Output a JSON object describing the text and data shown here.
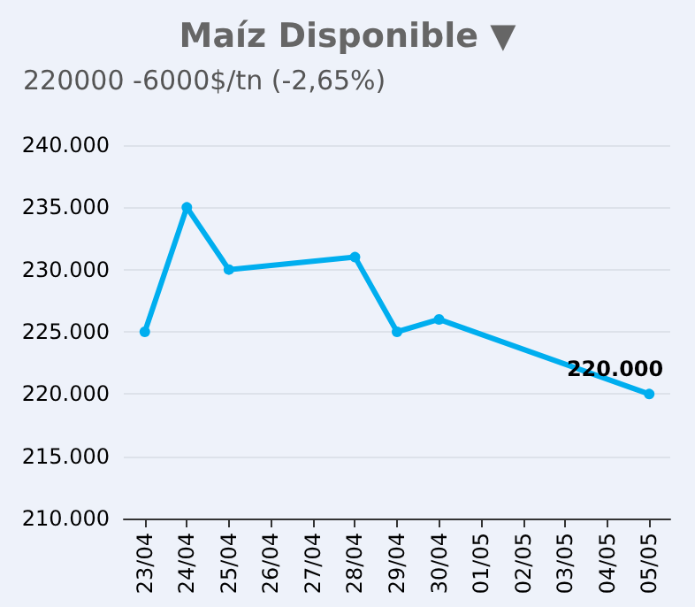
{
  "chart_data": {
    "type": "line",
    "title": "Maíz Disponible ▼",
    "subtitle": "220000 -6000$/tn (-2,65%)",
    "categories": [
      "23/04",
      "24/04",
      "25/04",
      "26/04",
      "27/04",
      "28/04",
      "29/04",
      "30/04",
      "01/05",
      "02/05",
      "03/05",
      "04/05",
      "05/05"
    ],
    "series": [
      {
        "color": "#00aeef",
        "values": [
          225000,
          235000,
          230000,
          null,
          null,
          231000,
          225000,
          226000,
          null,
          null,
          null,
          null,
          220000
        ],
        "value_labels": [
          null,
          null,
          null,
          null,
          null,
          null,
          null,
          null,
          null,
          null,
          null,
          null,
          "220.000"
        ]
      }
    ],
    "ylim": [
      210000,
      240000
    ],
    "yticks": [
      {
        "value": 210000,
        "label": "210.000"
      },
      {
        "value": 215000,
        "label": "215.000"
      },
      {
        "value": 220000,
        "label": "220.000"
      },
      {
        "value": 225000,
        "label": "225.000"
      },
      {
        "value": 230000,
        "label": "230.000"
      },
      {
        "value": 235000,
        "label": "235.000"
      },
      {
        "value": 240000,
        "label": "240.000"
      }
    ],
    "grid": "y",
    "marker": "circle",
    "line_style": "solid"
  }
}
